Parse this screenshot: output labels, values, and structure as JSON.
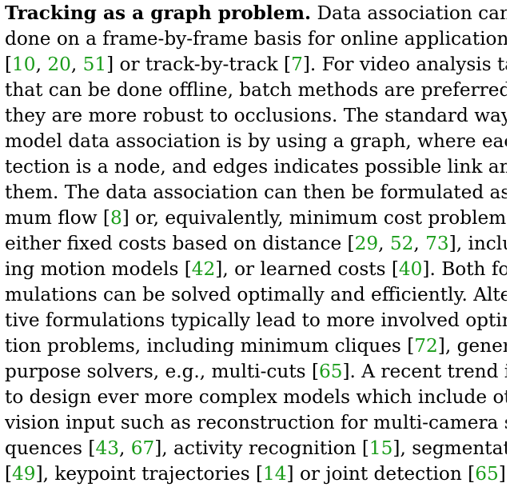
{
  "paragraph": {
    "heading": "Tracking as a graph problem.",
    "lines": [
      [
        {
          "t": "Tracking as a graph problem.",
          "bold": true
        },
        {
          "t": "  Data association can be"
        }
      ],
      [
        {
          "t": "done on a frame-by-frame basis for online applications"
        }
      ],
      [
        {
          "t": "["
        },
        {
          "t": "10",
          "cite": true
        },
        {
          "t": ", "
        },
        {
          "t": "20",
          "cite": true
        },
        {
          "t": ", "
        },
        {
          "t": "51",
          "cite": true
        },
        {
          "t": "] or track-by-track ["
        },
        {
          "t": "7",
          "cite": true
        },
        {
          "t": "]. For video analysis tasks"
        }
      ],
      [
        {
          "t": "that can be done offline, batch methods are preferred since"
        }
      ],
      [
        {
          "t": "they are more robust to occlusions.  The standard way to"
        }
      ],
      [
        {
          "t": "model data association is by using a graph, where each de-"
        }
      ],
      [
        {
          "t": "tection is a node, and edges indicates possible link among"
        }
      ],
      [
        {
          "t": "them. The data association can then be formulated as maxi-"
        }
      ],
      [
        {
          "t": "mum flow ["
        },
        {
          "t": "8",
          "cite": true
        },
        {
          "t": "] or, equivalently, minimum cost problem with"
        }
      ],
      [
        {
          "t": "either fixed costs based on distance ["
        },
        {
          "t": "29",
          "cite": true
        },
        {
          "t": ", "
        },
        {
          "t": "52",
          "cite": true
        },
        {
          "t": ", "
        },
        {
          "t": "73",
          "cite": true
        },
        {
          "t": "], includ-"
        }
      ],
      [
        {
          "t": "ing motion models ["
        },
        {
          "t": "42",
          "cite": true
        },
        {
          "t": "], or learned costs ["
        },
        {
          "t": "40",
          "cite": true
        },
        {
          "t": "].  Both for-"
        }
      ],
      [
        {
          "t": "mulations can be solved optimally and efficiently. Alterna-"
        }
      ],
      [
        {
          "t": "tive formulations typically lead to more involved optimiza-"
        }
      ],
      [
        {
          "t": "tion problems, including minimum cliques ["
        },
        {
          "t": "72",
          "cite": true
        },
        {
          "t": "], general-"
        }
      ],
      [
        {
          "t": "purpose solvers, e.g., multi-cuts ["
        },
        {
          "t": "65",
          "cite": true
        },
        {
          "t": "].  A recent trend is"
        }
      ],
      [
        {
          "t": "to design ever more complex models which include other"
        }
      ],
      [
        {
          "t": "vision input such as reconstruction for multi-camera se-"
        }
      ],
      [
        {
          "t": "quences ["
        },
        {
          "t": "43",
          "cite": true
        },
        {
          "t": ", "
        },
        {
          "t": "67",
          "cite": true
        },
        {
          "t": "], activity recognition ["
        },
        {
          "t": "15",
          "cite": true
        },
        {
          "t": "], segmentation"
        }
      ],
      [
        {
          "t": "["
        },
        {
          "t": "49",
          "cite": true
        },
        {
          "t": "], keypoint trajectories ["
        },
        {
          "t": "14",
          "cite": true
        },
        {
          "t": "] or joint detection ["
        },
        {
          "t": "65",
          "cite": true
        },
        {
          "t": "]."
        }
      ]
    ]
  }
}
